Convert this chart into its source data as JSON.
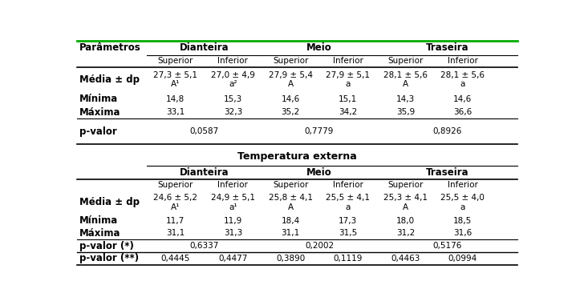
{
  "fig_width": 7.23,
  "fig_height": 3.56,
  "dpi": 100,
  "top_table": {
    "rows": [
      {
        "label": "Média ± dp",
        "values": [
          "27,3 ± 5,1\nA¹",
          "27,0 ± 4,9\na²",
          "27,9 ± 5,4\nA",
          "27,9 ± 5,1\na",
          "28,1 ± 5,6\nA",
          "28,1 ± 5,6\na"
        ]
      },
      {
        "label": "Mínima",
        "values": [
          "14,8",
          "15,3",
          "14,6",
          "15,1",
          "14,3",
          "14,6"
        ]
      },
      {
        "label": "Máxima",
        "values": [
          "33,1",
          "32,3",
          "35,2",
          "34,2",
          "35,9",
          "36,6"
        ]
      }
    ],
    "pvalue_row": {
      "label": "p-valor",
      "values": [
        "0,0587",
        "0,7779",
        "0,8926"
      ]
    }
  },
  "bottom_table": {
    "section_title": "Temperatura externa",
    "rows": [
      {
        "label": "Média ± dp",
        "values": [
          "24,6 ± 5,2\nA¹",
          "24,9 ± 5,1\na¹",
          "25,8 ± 4,1\nA",
          "25,5 ± 4,1\na",
          "25,3 ± 4,1\nA",
          "25,5 ± 4,0\na"
        ]
      },
      {
        "label": "Mínima",
        "values": [
          "11,7",
          "11,9",
          "18,4",
          "17,3",
          "18,0",
          "18,5"
        ]
      },
      {
        "label": "Máxima",
        "values": [
          "31,1",
          "31,3",
          "31,1",
          "31,5",
          "31,2",
          "31,6"
        ]
      }
    ],
    "pvalue_star_row": {
      "label": "p-valor (*)",
      "values": [
        "0,6337",
        "0,2002",
        "0,5176"
      ]
    },
    "pvalue_dstar_row": {
      "label": "p-valor (**)",
      "values": [
        "0,4445",
        "0,4477",
        "0,3890",
        "0,1119",
        "0,4463",
        "0,0994"
      ]
    }
  },
  "green_line_color": "#00aa00"
}
